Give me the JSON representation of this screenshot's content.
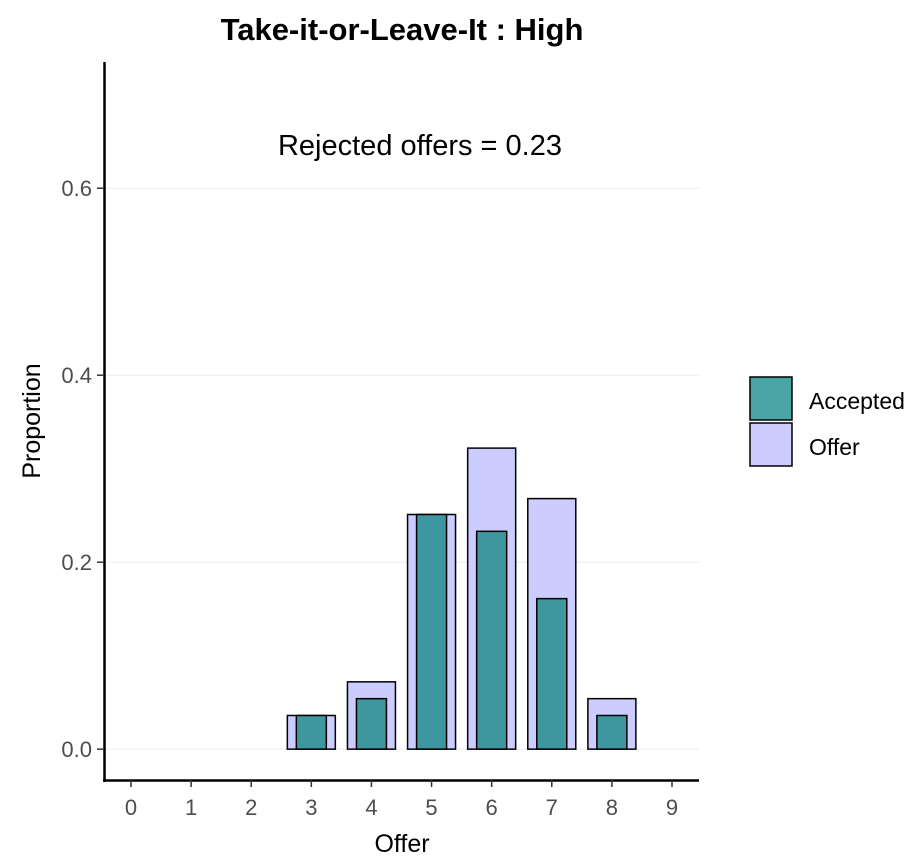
{
  "colors": {
    "accepted": "#3E969F",
    "offer": "#CCCCFF",
    "legend_accepted": "#4AA5A5",
    "stroke": "#000000",
    "grid": "#EBEBEB"
  },
  "chart_data": {
    "type": "bar",
    "title": "Take-it-or-Leave-It : High",
    "xlabel": "Offer",
    "ylabel": "Proportion",
    "annotation": "Rejected offers = 0.23",
    "categories": [
      "0",
      "1",
      "2",
      "3",
      "4",
      "5",
      "6",
      "7",
      "8",
      "9"
    ],
    "x_ticks": [
      "0",
      "1",
      "2",
      "3",
      "4",
      "5",
      "6",
      "7",
      "8",
      "9"
    ],
    "y_ticks": [
      "0.0",
      "0.2",
      "0.4",
      "0.6"
    ],
    "ylim": [
      -0.033,
      0.735
    ],
    "grid": "horizontal",
    "legend_position": "right",
    "series": [
      {
        "name": "Offer",
        "values": [
          0,
          0,
          0,
          0.036,
          0.072,
          0.251,
          0.322,
          0.268,
          0.054,
          0
        ]
      },
      {
        "name": "Accepted",
        "values": [
          0,
          0,
          0,
          0.036,
          0.054,
          0.251,
          0.233,
          0.161,
          0.036,
          0
        ]
      }
    ]
  }
}
